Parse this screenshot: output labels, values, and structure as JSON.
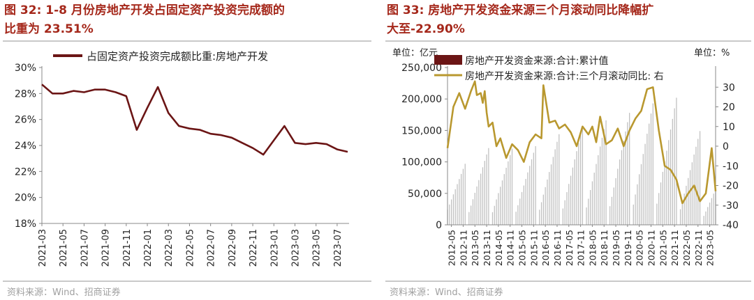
{
  "left_panel": {
    "title": "图 32:  1-8 月份房地产开发占固定资产投资完成额的\n比重为 23.51%",
    "source": "资料来源：Wind、招商证券"
  },
  "right_panel": {
    "title": "图 33:  房地产开发资金来源三个月滚动同比降幅扩\n大至-22.90%",
    "source": "资料来源：Wind、招商证券",
    "unit_left": "单位：亿元",
    "unit_right": "单位：%"
  },
  "colors": {
    "title": "#a5281b",
    "line_dark": "#6b1515",
    "line_gold": "#b9982f",
    "bar": "#bfbfbf"
  },
  "chart_data": [
    {
      "type": "line",
      "legend_position": "top",
      "grid": false,
      "ylim": [
        18,
        30
      ],
      "y_ticks": [
        "30%",
        "28%",
        "26%",
        "24%",
        "22%",
        "20%",
        "18%"
      ],
      "x_tick_labels": [
        "2021-03",
        "2021-05",
        "2021-07",
        "2021-09",
        "2021-11",
        "2022-01",
        "2022-03",
        "2022-05",
        "2022-07",
        "2022-09",
        "2022-11",
        "2023-01",
        "2023-03",
        "2023-05",
        "2023-07"
      ],
      "x": [
        "2021-03",
        "2021-04",
        "2021-05",
        "2021-06",
        "2021-07",
        "2021-08",
        "2021-09",
        "2021-10",
        "2021-11",
        "2021-12",
        "2022-01",
        "2022-02",
        "2022-03",
        "2022-04",
        "2022-05",
        "2022-06",
        "2022-07",
        "2022-08",
        "2022-09",
        "2022-10",
        "2022-11",
        "2022-12",
        "2023-01",
        "2023-02",
        "2023-03",
        "2023-04",
        "2023-05",
        "2023-06",
        "2023-07",
        "2023-08"
      ],
      "series": [
        {
          "name": "占固定资产投资完成额比重:房地产开发",
          "values": [
            28.7,
            28.0,
            28.0,
            28.2,
            28.1,
            28.3,
            28.3,
            28.1,
            27.8,
            25.2,
            26.9,
            28.5,
            26.5,
            25.5,
            25.3,
            25.2,
            24.9,
            24.8,
            24.6,
            24.2,
            23.8,
            23.3,
            24.4,
            25.5,
            24.2,
            24.1,
            24.2,
            24.1,
            23.7,
            23.51
          ]
        }
      ]
    },
    {
      "type": "bar_line_dual_axis",
      "legend_position": "top",
      "grid": false,
      "y_left_lim": [
        0,
        250000
      ],
      "y_left_ticks": [
        "250,000",
        "200,000",
        "150,000",
        "100,000",
        "50,000",
        "0"
      ],
      "y_right_lim": [
        -40,
        40
      ],
      "y_right_ticks": [
        "30",
        "20",
        "10",
        "0",
        "-10",
        "-20",
        "-30",
        "-40"
      ],
      "x_tick_labels": [
        "2012-05",
        "2012-11",
        "2013-05",
        "2013-11",
        "2014-05",
        "2014-11",
        "2015-05",
        "2015-11",
        "2016-05",
        "2016-11",
        "2017-05",
        "2017-11",
        "2018-05",
        "2018-11",
        "2019-05",
        "2019-11",
        "2020-05",
        "2020-11",
        "2021-05",
        "2021-11",
        "2022-05",
        "2022-11",
        "2023-05"
      ],
      "bars": {
        "name": "房地产开发资金来源:合计:累计值",
        "axis": "left",
        "year_start_month": 2,
        "years": [
          {
            "year": "2012",
            "dec_total": 97000
          },
          {
            "year": "2013",
            "dec_total": 122000
          },
          {
            "year": "2014",
            "dec_total": 121000
          },
          {
            "year": "2015",
            "dec_total": 125000
          },
          {
            "year": "2016",
            "dec_total": 144000
          },
          {
            "year": "2017",
            "dec_total": 156000
          },
          {
            "year": "2018",
            "dec_total": 166000
          },
          {
            "year": "2019",
            "dec_total": 178000
          },
          {
            "year": "2020",
            "dec_total": 193000
          },
          {
            "year": "2021",
            "dec_total": 202000
          },
          {
            "year": "2022",
            "dec_total": 149000
          },
          {
            "year": "2023",
            "dec_total": 85000,
            "last_month": 8
          }
        ]
      },
      "line": {
        "name": "房地产开发资金来源:合计:三个月滚动同比:  右",
        "axis": "right",
        "x": [
          "2012-03",
          "2012-06",
          "2012-09",
          "2012-12",
          "2013-03",
          "2013-05",
          "2013-06",
          "2013-08",
          "2013-09",
          "2013-10",
          "2013-11",
          "2013-12",
          "2014-02",
          "2014-04",
          "2014-06",
          "2014-09",
          "2014-12",
          "2015-03",
          "2015-06",
          "2015-09",
          "2015-12",
          "2016-03",
          "2016-04",
          "2016-07",
          "2016-10",
          "2016-12",
          "2017-03",
          "2017-06",
          "2017-09",
          "2017-12",
          "2018-03",
          "2018-05",
          "2018-07",
          "2018-09",
          "2018-12",
          "2019-03",
          "2019-06",
          "2019-09",
          "2019-12",
          "2020-03",
          "2020-06",
          "2020-09",
          "2020-12",
          "2021-03",
          "2021-06",
          "2021-09",
          "2021-12",
          "2022-03",
          "2022-06",
          "2022-09",
          "2022-12",
          "2023-03",
          "2023-06",
          "2023-08"
        ],
        "values": [
          -1,
          20,
          27,
          19,
          28,
          33,
          26,
          27,
          22,
          28,
          17,
          10,
          12,
          0,
          4,
          -6,
          1,
          -2,
          -8,
          2,
          6,
          4,
          31,
          12,
          13,
          9,
          11,
          7,
          0,
          10,
          6,
          10,
          2,
          15,
          1,
          3,
          9,
          0,
          8,
          14,
          18,
          29,
          30,
          8,
          -10,
          -12,
          -17,
          -29,
          -24,
          -20,
          -28,
          -24,
          -1,
          -22.9
        ]
      }
    }
  ]
}
